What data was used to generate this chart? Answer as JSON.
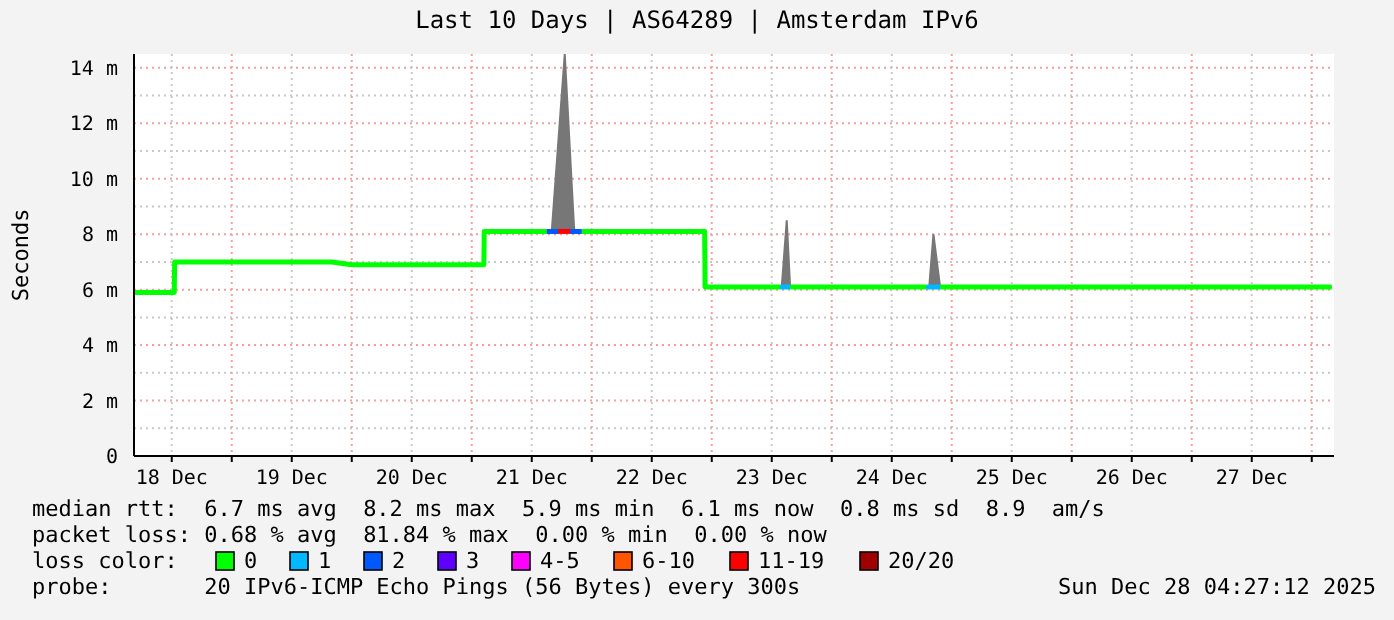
{
  "chart_data": {
    "type": "line",
    "title": "Last 10 Days | AS64289 | Amsterdam IPv6",
    "ylabel": "Seconds",
    "xlim": [
      "2025-12-18T04:27",
      "2025-12-28T04:27"
    ],
    "xticks": [
      {
        "value": "2025-12-18T12:00",
        "label": "18 Dec"
      },
      {
        "value": "2025-12-19T00:00",
        "label": null
      },
      {
        "value": "2025-12-19T12:00",
        "label": "19 Dec"
      },
      {
        "value": "2025-12-20T00:00",
        "label": null
      },
      {
        "value": "2025-12-20T12:00",
        "label": "20 Dec"
      },
      {
        "value": "2025-12-21T00:00",
        "label": null
      },
      {
        "value": "2025-12-21T12:00",
        "label": "21 Dec"
      },
      {
        "value": "2025-12-22T00:00",
        "label": null
      },
      {
        "value": "2025-12-22T12:00",
        "label": "22 Dec"
      },
      {
        "value": "2025-12-23T00:00",
        "label": null
      },
      {
        "value": "2025-12-23T12:00",
        "label": "23 Dec"
      },
      {
        "value": "2025-12-24T00:00",
        "label": null
      },
      {
        "value": "2025-12-24T12:00",
        "label": "24 Dec"
      },
      {
        "value": "2025-12-25T00:00",
        "label": null
      },
      {
        "value": "2025-12-25T12:00",
        "label": "25 Dec"
      },
      {
        "value": "2025-12-26T00:00",
        "label": null
      },
      {
        "value": "2025-12-26T12:00",
        "label": "26 Dec"
      },
      {
        "value": "2025-12-27T00:00",
        "label": null
      },
      {
        "value": "2025-12-27T12:00",
        "label": "27 Dec"
      },
      {
        "value": "2025-12-28T00:00",
        "label": null
      }
    ],
    "ylim": [
      0,
      14.5
    ],
    "yticks": [
      0,
      {
        "value": 1,
        "label": null
      },
      {
        "value": 2,
        "label": "2 m"
      },
      {
        "value": 3,
        "label": null
      },
      {
        "value": 4,
        "label": "4 m"
      },
      {
        "value": 5,
        "label": null
      },
      {
        "value": 6,
        "label": "6 m"
      },
      {
        "value": 7,
        "label": null
      },
      {
        "value": 8,
        "label": "8 m"
      },
      {
        "value": 9,
        "label": null
      },
      {
        "value": 10,
        "label": "10 m"
      },
      {
        "value": 11,
        "label": null
      },
      {
        "value": 12,
        "label": "12 m"
      },
      {
        "value": 13,
        "label": null
      },
      {
        "value": 14,
        "label": "14 m"
      }
    ],
    "grid": true,
    "legend": "bottom",
    "legend_title": "loss color:",
    "series": [
      {
        "name": "0",
        "color": "#00ff00",
        "x": [
          "2025-12-18T04:27",
          "2025-12-18T12:30",
          "2025-12-18T12:35",
          "2025-12-19T20:00",
          "2025-12-20T00:00",
          "2025-12-21T02:25",
          "2025-12-21T02:30",
          "2025-12-21T15:00",
          "2025-12-21T16:00",
          "2025-12-21T18:36",
          "2025-12-21T20:30",
          "2025-12-21T22:00",
          "2025-12-22T22:35",
          "2025-12-22T22:40",
          "2025-12-23T13:40",
          "2025-12-23T14:00",
          "2025-12-23T15:00",
          "2025-12-23T15:40",
          "2025-12-24T18:55",
          "2025-12-24T19:30",
          "2025-12-24T20:20",
          "2025-12-24T21:40",
          "2025-12-28T04:00"
        ],
        "values": [
          5.9,
          5.9,
          7.0,
          7.0,
          6.9,
          6.9,
          8.1,
          8.1,
          null,
          null,
          null,
          8.1,
          8.1,
          6.1,
          6.1,
          null,
          null,
          6.1,
          6.1,
          null,
          null,
          6.1,
          6.1
        ],
        "lower": [
          5.9,
          5.9,
          7.0,
          7.0,
          6.9,
          6.9,
          8.1,
          8.1,
          8.1,
          8.1,
          8.1,
          8.1,
          8.1,
          6.1,
          6.1,
          6.1,
          6.1,
          6.1,
          6.1,
          6.1,
          6.1,
          6.1,
          6.1
        ],
        "upper": [
          5.9,
          5.9,
          7.0,
          7.0,
          6.9,
          6.9,
          8.1,
          8.1,
          8.1,
          14.5,
          8.1,
          8.1,
          8.1,
          6.1,
          6.1,
          6.1,
          8.5,
          6.1,
          6.1,
          6.1,
          8.0,
          6.1,
          6.1
        ]
      },
      {
        "name": "1",
        "color": "#00b8ff",
        "x": [
          "2025-12-23T13:40",
          "2025-12-23T15:40",
          "2025-12-23T15:41",
          "2025-12-24T18:55",
          "2025-12-24T21:40"
        ],
        "values": [
          6.1,
          6.1,
          null,
          6.1,
          6.1
        ]
      },
      {
        "name": "2",
        "color": "#0059ff",
        "x": [
          "2025-12-21T15:00",
          "2025-12-21T17:15",
          "2025-12-21T17:16",
          "2025-12-21T19:40",
          "2025-12-21T22:00"
        ],
        "values": [
          8.1,
          8.1,
          null,
          8.1,
          8.1
        ]
      },
      {
        "name": "3",
        "color": "#5e00ff"
      },
      {
        "name": "4-5",
        "color": "#ff00ff"
      },
      {
        "name": "6-10",
        "color": "#ff5500"
      },
      {
        "name": "11-19",
        "color": "#ff0000",
        "x": [
          "2025-12-21T17:15",
          "2025-12-21T19:40"
        ],
        "values": [
          8.1,
          8.1
        ]
      },
      {
        "name": "20/20",
        "color": "#a10000"
      }
    ],
    "annotations": [
      "median rtt:  6.7 ms avg  8.2 ms max  5.9 ms min  6.1 ms now  0.8 ms sd  8.9  am/s",
      "packet loss: 0.68 % avg  81.84 % max  0.00 % min  0.00 % now",
      "probe:       20 IPv6-ICMP Echo Pings (56 Bytes) every 300s",
      "Sun Dec 28 04:27:12 2025"
    ]
  }
}
